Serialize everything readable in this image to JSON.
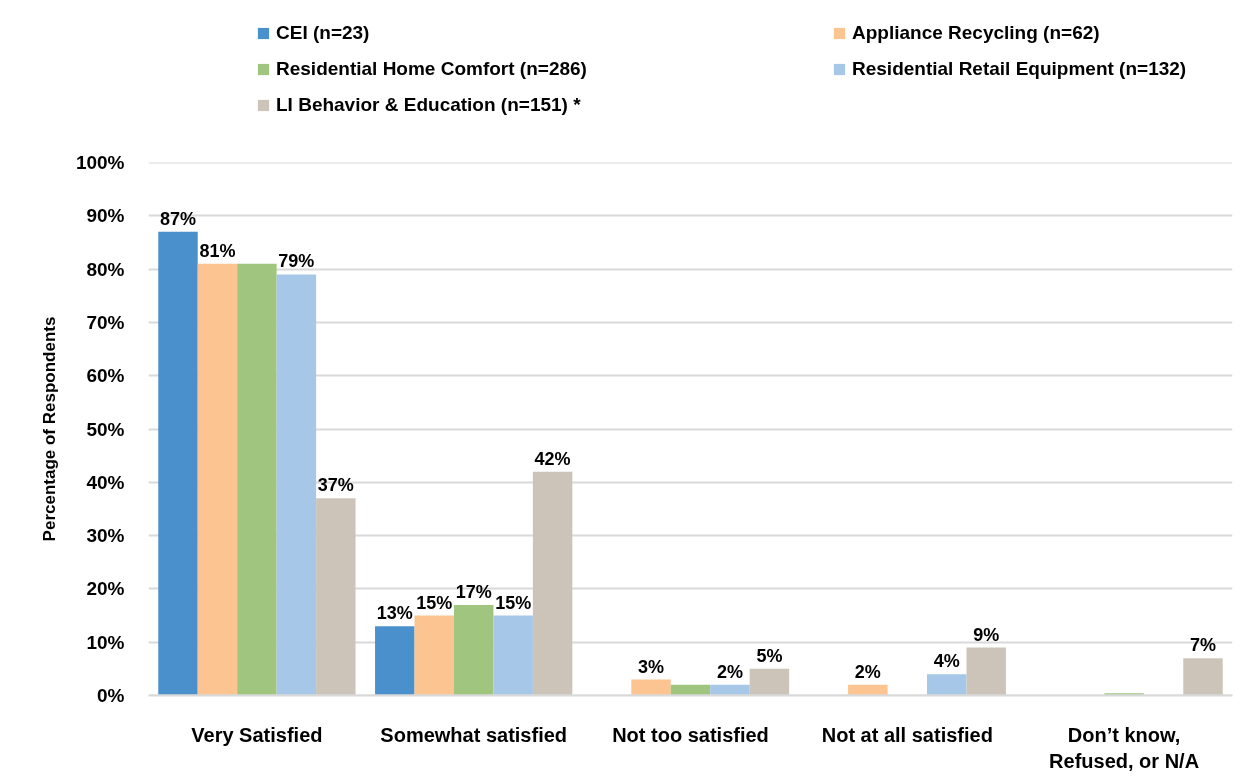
{
  "chart_data": {
    "type": "bar",
    "ylabel": "Percentage of Respondents",
    "categories": [
      "Very Satisfied",
      "Somewhat satisfied",
      "Not too satisfied",
      "Not at all satisfied",
      "Don’t know,\nRefused, or N/A"
    ],
    "series": [
      {
        "name": "CEI (n=23)",
        "color": "#4a90cd",
        "values": [
          87,
          13,
          null,
          null,
          null
        ],
        "value_labels": [
          "87%",
          "13%",
          null,
          null,
          null
        ]
      },
      {
        "name": "Appliance Recycling (n=62)",
        "color": "#fbc490",
        "values": [
          81,
          15,
          3,
          2,
          null
        ],
        "value_labels": [
          "81%",
          "15%",
          "3%",
          "2%",
          null
        ]
      },
      {
        "name": "Residential Home Comfort (n=286)",
        "color": "#a0c57f",
        "values": [
          81,
          17,
          2,
          null,
          0.4
        ],
        "value_labels": [
          null,
          "17%",
          null,
          null,
          null
        ]
      },
      {
        "name": "Residential Retail Equipment (n=132)",
        "color": "#a6c7e8",
        "values": [
          79,
          15,
          2,
          4,
          null
        ],
        "value_labels": [
          "79%",
          "15%",
          "2%",
          "4%",
          null
        ]
      },
      {
        "name": "LI Behavior & Education (n=151) *",
        "color": "#ccc4b8",
        "values": [
          37,
          42,
          5,
          9,
          7
        ],
        "value_labels": [
          "37%",
          "42%",
          "5%",
          "9%",
          "7%"
        ]
      }
    ],
    "ylim": [
      0,
      100
    ],
    "yticks": [
      {
        "value": 0,
        "label": "0%"
      },
      {
        "value": 10,
        "label": "10%"
      },
      {
        "value": 20,
        "label": "20%"
      },
      {
        "value": 30,
        "label": "30%"
      },
      {
        "value": 40,
        "label": "40%"
      },
      {
        "value": 50,
        "label": "50%"
      },
      {
        "value": 60,
        "label": "60%"
      },
      {
        "value": 70,
        "label": "70%"
      },
      {
        "value": 80,
        "label": "80%"
      },
      {
        "value": 90,
        "label": "90%"
      },
      {
        "value": 100,
        "label": "100%"
      }
    ],
    "grid": "y",
    "legend": "top"
  }
}
